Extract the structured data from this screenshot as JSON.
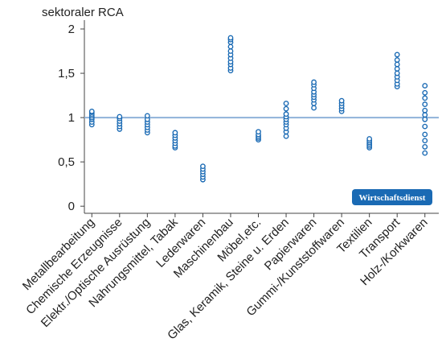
{
  "chart_data": {
    "type": "strip",
    "y_label": "sektoraler RCA",
    "categories": [
      "Metallbearbeitung",
      "Chemische Erzeugnisse",
      "Elektr./Optische Ausrüstung",
      "Nahrungsmittel, Tabak",
      "Lederwaren",
      "Maschinenbau",
      "Möbel,etc.",
      "Glas, Keramik, Steine u. Erden",
      "Papierwaren",
      "Gummi-/Kunststoffwaren",
      "Textilien",
      "Transport",
      "Holz-/Korkwaren"
    ],
    "values": [
      [
        0.92,
        0.95,
        0.98,
        1.0,
        1.02,
        1.04,
        1.06,
        1.07
      ],
      [
        0.87,
        0.9,
        0.93,
        0.96,
        0.99,
        1.01
      ],
      [
        0.83,
        0.86,
        0.89,
        0.92,
        0.95,
        0.98,
        1.02
      ],
      [
        0.66,
        0.68,
        0.71,
        0.74,
        0.77,
        0.8,
        0.83
      ],
      [
        0.3,
        0.33,
        0.36,
        0.39,
        0.42,
        0.45
      ],
      [
        1.53,
        1.56,
        1.6,
        1.63,
        1.67,
        1.71,
        1.75,
        1.8,
        1.85,
        1.88,
        1.9
      ],
      [
        0.75,
        0.77,
        0.79,
        0.81,
        0.84
      ],
      [
        0.79,
        0.84,
        0.88,
        0.92,
        0.95,
        0.98,
        1.01,
        1.04,
        1.1,
        1.16
      ],
      [
        1.11,
        1.16,
        1.2,
        1.23,
        1.26,
        1.29,
        1.33,
        1.37,
        1.4
      ],
      [
        1.07,
        1.1,
        1.13,
        1.16,
        1.19
      ],
      [
        0.66,
        0.68,
        0.7,
        0.72,
        0.74,
        0.76
      ],
      [
        1.35,
        1.38,
        1.42,
        1.46,
        1.5,
        1.55,
        1.6,
        1.65,
        1.71
      ],
      [
        0.6,
        0.67,
        0.74,
        0.81,
        0.9,
        0.98,
        1.03,
        1.08,
        1.15,
        1.22,
        1.28,
        1.36
      ]
    ],
    "color": "#1a6ab4",
    "reference_line": 1,
    "reference_color": "#8fb2d9",
    "ylim": [
      -0.08,
      2.1
    ],
    "yticks": [
      0,
      {
        "value": 0.5,
        "label": "0,5"
      },
      1,
      {
        "value": 1.5,
        "label": "1,5"
      },
      2
    ],
    "source_badge": "Wirtschaftsdienst"
  }
}
